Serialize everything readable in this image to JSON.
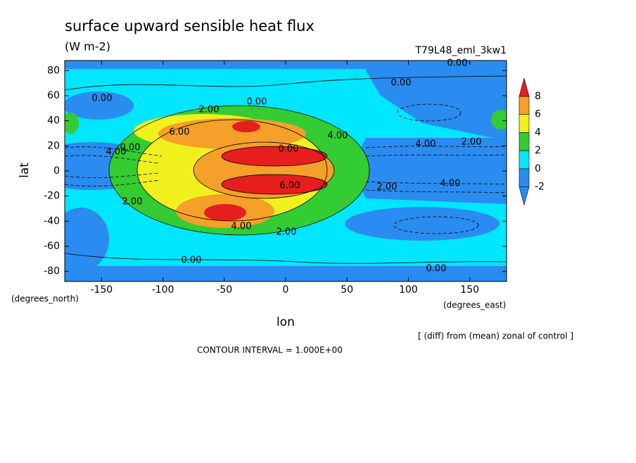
{
  "chart_data": {
    "type": "contour",
    "title": "surface upward sensible heat flux",
    "subtitle": "(W m-2)",
    "run_label": "T79L48_eml_3kw1",
    "xlabel": "lon",
    "ylabel": "lat",
    "y_unit_label": "(degrees_north)",
    "x_unit_label": "(degrees_east)",
    "note": "[ (diff) from (mean) zonal of control ]",
    "contour_interval": "CONTOUR INTERVAL = 1.000E+00",
    "xlim": [
      -180,
      180
    ],
    "ylim": [
      -88,
      88
    ],
    "xticks": [
      -150,
      -100,
      -50,
      0,
      50,
      100,
      150
    ],
    "yticks": [
      -80,
      -60,
      -40,
      -20,
      0,
      20,
      40,
      60,
      80
    ],
    "levels": [
      -2,
      0,
      2,
      4,
      6,
      8
    ],
    "colors": [
      "#2a8cf0",
      "#2a8cf0",
      "#00e6ff",
      "#33cc33",
      "#f0f01e",
      "#f5a028",
      "#e61e1e"
    ],
    "contour_labels": [
      "0.00",
      "0.00",
      "0.00",
      "0.00",
      "2.00",
      "6.00",
      "4.00",
      "0.00",
      "4.00",
      "0.00",
      "4.00",
      "2.00",
      "2.00",
      "4.00",
      "2.00",
      "6.00",
      "4.00",
      "2.00",
      "0.00",
      "0.00"
    ]
  }
}
